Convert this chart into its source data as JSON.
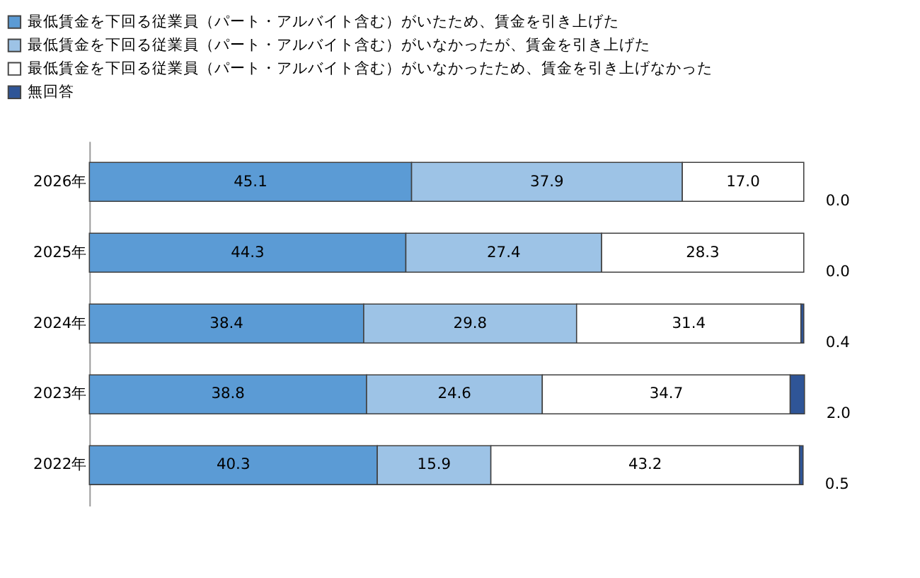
{
  "chart_data": {
    "type": "bar",
    "orientation": "horizontal",
    "stacked": true,
    "legend": "top left",
    "tick_labels": "y",
    "grid": false,
    "categories": [
      "2026年",
      "2025年",
      "2024年",
      "2023年",
      "2022年"
    ],
    "series": [
      {
        "name": "最低賃金を下回る従業員（パート・アルバイト含む）がいたため、賃金を引き上げた",
        "color": "#5b9bd5",
        "values": [
          45.1,
          44.3,
          38.4,
          38.8,
          40.3
        ],
        "value_labels": [
          "45.1",
          "44.3",
          "38.4",
          "38.8",
          "40.3"
        ]
      },
      {
        "name": "最低賃金を下回る従業員（パート・アルバイト含む）がいなかったが、賃金を引き上げた",
        "color": "#9dc3e6",
        "values": [
          37.9,
          27.4,
          29.8,
          24.6,
          15.9
        ],
        "value_labels": [
          "37.9",
          "27.4",
          "29.8",
          "24.6",
          "15.9"
        ]
      },
      {
        "name": "最低賃金を下回る従業員（パート・アルバイト含む）がいなかったため、賃金を引き上げなかった",
        "color": "#ffffff",
        "values": [
          17.0,
          28.3,
          31.4,
          34.7,
          43.2
        ],
        "value_labels": [
          "17.0",
          "28.3",
          "31.4",
          "34.7",
          "43.2"
        ]
      },
      {
        "name": "無回答",
        "color": "#2f5597",
        "values": [
          0.0,
          0.0,
          0.4,
          2.0,
          0.5
        ],
        "value_labels": [
          "0.0",
          "0.0",
          "0.4",
          "2.0",
          "0.5"
        ]
      }
    ]
  }
}
